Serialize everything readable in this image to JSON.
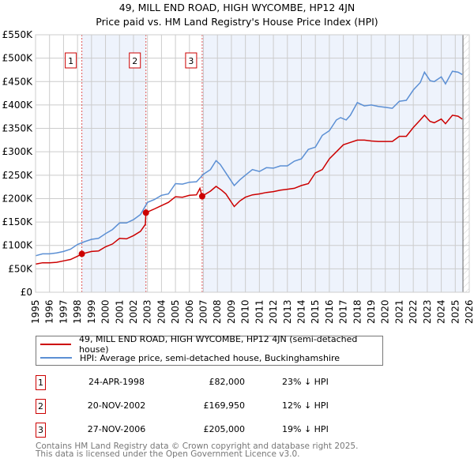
{
  "header": {
    "title_line1": "49, MILL END ROAD, HIGH WYCOMBE, HP12 4JN",
    "title_line2": "Price paid vs. HM Land Registry's House Price Index (HPI)"
  },
  "chart_data": {
    "type": "line",
    "title": "49, MILL END ROAD, HIGH WYCOMBE, HP12 4JN — Price paid vs. HM Land Registry's House Price Index (HPI)",
    "xlim": [
      1995,
      2026
    ],
    "ylim": [
      0,
      550000
    ],
    "yticks": [
      0,
      50000,
      100000,
      150000,
      200000,
      250000,
      300000,
      350000,
      400000,
      450000,
      500000,
      550000
    ],
    "ytick_labels": [
      "£0",
      "£50K",
      "£100K",
      "£150K",
      "£200K",
      "£250K",
      "£300K",
      "£350K",
      "£400K",
      "£450K",
      "£500K",
      "£550K"
    ],
    "xticks": [
      "1995",
      "1996",
      "1997",
      "1998",
      "1999",
      "2000",
      "2001",
      "2002",
      "2003",
      "2004",
      "2005",
      "2006",
      "2007",
      "2008",
      "2009",
      "2010",
      "2011",
      "2012",
      "2013",
      "2014",
      "2015",
      "2016",
      "2017",
      "2018",
      "2019",
      "2020",
      "2021",
      "2022",
      "2023",
      "2024",
      "2025",
      "2026"
    ],
    "grid": true,
    "colors": {
      "property": "#cc0000",
      "hpi": "#5b8fd4",
      "shade": "#eef3fc"
    },
    "series": [
      {
        "name": "49, MILL END ROAD, HIGH WYCOMBE, HP12 4JN (semi-detached house)",
        "color": "#cc0000",
        "x": [
          1995,
          1995.5,
          1996,
          1996.5,
          1997,
          1997.5,
          1998,
          1998.31,
          1999,
          1999.5,
          2000,
          2000.5,
          2001,
          2001.5,
          2002,
          2002.5,
          2002.85,
          2002.89,
          2003.5,
          2004,
          2004.5,
          2005,
          2005.5,
          2006,
          2006.5,
          2006.75,
          2006.9,
          2007.5,
          2007.9,
          2008.3,
          2008.6,
          2009.2,
          2009.6,
          2010,
          2010.5,
          2011,
          2011.5,
          2012,
          2012.5,
          2013,
          2013.5,
          2014,
          2014.5,
          2015,
          2015.5,
          2016,
          2016.5,
          2017,
          2017.5,
          2018,
          2018.5,
          2019,
          2019.5,
          2020,
          2020.5,
          2021,
          2021.5,
          2022,
          2022.5,
          2022.8,
          2023.2,
          2023.5,
          2024,
          2024.3,
          2024.8,
          2025.2,
          2025.5
        ],
        "y": [
          60000,
          63000,
          63000,
          64000,
          67000,
          70000,
          77000,
          82000,
          87000,
          88000,
          97000,
          103000,
          115000,
          114000,
          121000,
          130000,
          145000,
          169950,
          178000,
          185000,
          192000,
          204000,
          203000,
          207000,
          208000,
          222000,
          205000,
          216000,
          226000,
          218000,
          210000,
          183000,
          195000,
          203000,
          208000,
          210000,
          213000,
          215000,
          218000,
          220000,
          222000,
          228000,
          232000,
          255000,
          262000,
          285000,
          300000,
          315000,
          320000,
          325000,
          325000,
          323000,
          322000,
          322000,
          322000,
          333000,
          333000,
          352000,
          368000,
          378000,
          365000,
          362000,
          370000,
          360000,
          378000,
          376000,
          370000
        ]
      },
      {
        "name": "HPI: Average price, semi-detached house, Buckinghamshire",
        "color": "#5b8fd4",
        "x": [
          1995,
          1995.5,
          1996,
          1996.5,
          1997,
          1997.5,
          1998,
          1998.5,
          1999,
          1999.5,
          2000,
          2000.5,
          2001,
          2001.5,
          2002,
          2002.5,
          2003,
          2003.5,
          2004,
          2004.5,
          2005,
          2005.5,
          2006,
          2006.5,
          2007,
          2007.5,
          2007.9,
          2008.2,
          2008.6,
          2009.2,
          2009.6,
          2010,
          2010.5,
          2011,
          2011.5,
          2012,
          2012.5,
          2013,
          2013.5,
          2014,
          2014.5,
          2015,
          2015.5,
          2016,
          2016.5,
          2016.8,
          2017.2,
          2017.5,
          2018,
          2018.5,
          2019,
          2019.5,
          2020,
          2020.5,
          2021,
          2021.5,
          2022,
          2022.5,
          2022.8,
          2023.2,
          2023.5,
          2024,
          2024.3,
          2024.8,
          2025.2,
          2025.5
        ],
        "y": [
          78000,
          82000,
          82000,
          84000,
          87000,
          92000,
          102000,
          108000,
          113000,
          115000,
          125000,
          134000,
          148000,
          148000,
          155000,
          166000,
          192000,
          198000,
          207000,
          210000,
          232000,
          231000,
          235000,
          236000,
          252000,
          262000,
          281000,
          273000,
          255000,
          228000,
          240000,
          250000,
          262000,
          258000,
          266000,
          265000,
          270000,
          270000,
          280000,
          285000,
          305000,
          310000,
          335000,
          345000,
          368000,
          373000,
          368000,
          378000,
          405000,
          398000,
          400000,
          397000,
          395000,
          393000,
          408000,
          410000,
          432000,
          448000,
          470000,
          452000,
          450000,
          460000,
          445000,
          472000,
          470000,
          465000
        ]
      }
    ],
    "sales": [
      {
        "label": "1",
        "x": 1998.31,
        "y": 82000,
        "date": "24-APR-1998",
        "price": "£82,000",
        "hpi_diff": "23% ↓ HPI"
      },
      {
        "label": "2",
        "x": 2002.89,
        "y": 169950,
        "date": "20-NOV-2002",
        "price": "£169,950",
        "hpi_diff": "12% ↓ HPI"
      },
      {
        "label": "3",
        "x": 2006.91,
        "y": 205000,
        "date": "27-NOV-2006",
        "price": "£205,000",
        "hpi_diff": "19% ↓ HPI"
      }
    ],
    "forecast_start": 2025.55
  },
  "legend": {
    "property": "49, MILL END ROAD, HIGH WYCOMBE, HP12 4JN (semi-detached house)",
    "hpi": "HPI: Average price, semi-detached house, Buckinghamshire"
  },
  "footer": {
    "line1": "Contains HM Land Registry data © Crown copyright and database right 2025.",
    "line2": "This data is licensed under the Open Government Licence v3.0."
  }
}
